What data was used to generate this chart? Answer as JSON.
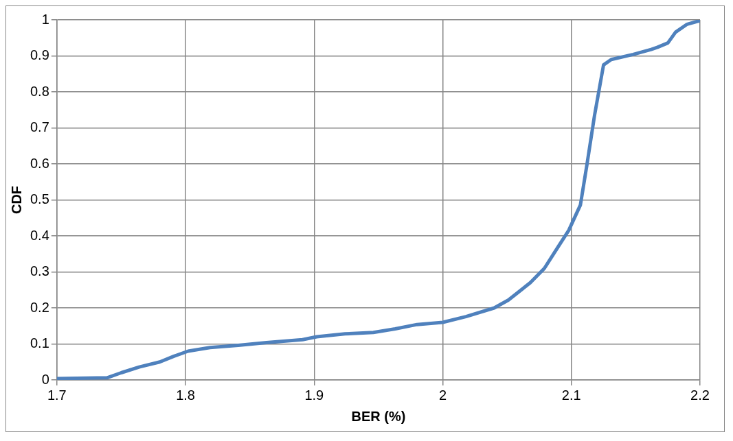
{
  "chart_data": {
    "type": "line",
    "xlabel": "BER (%)",
    "ylabel": "CDF",
    "xlim": [
      1.7,
      2.2
    ],
    "xticks": [
      1.7,
      1.8,
      1.9,
      2,
      2.1,
      2.2
    ],
    "ylim": [
      0,
      1
    ],
    "yticks": [
      0,
      0.1,
      0.2,
      0.3,
      0.4,
      0.5,
      0.6,
      0.7,
      0.8,
      0.9,
      1
    ],
    "grid": true,
    "legend": false,
    "marker": "none",
    "line_style": "solid",
    "series": [
      {
        "color": "#4f81bd",
        "x": [
          1.7,
          1.739,
          1.75,
          1.764,
          1.78,
          1.791,
          1.802,
          1.819,
          1.841,
          1.863,
          1.891,
          1.902,
          1.924,
          1.946,
          1.963,
          1.98,
          2.0,
          2.018,
          2.04,
          2.051,
          2.068,
          2.079,
          2.089,
          2.098,
          2.107,
          2.112,
          2.118,
          2.125,
          2.131,
          2.148,
          2.162,
          2.167,
          2.175,
          2.181,
          2.19,
          2.2
        ],
        "values": [
          0.004,
          0.006,
          0.02,
          0.036,
          0.05,
          0.066,
          0.08,
          0.09,
          0.096,
          0.104,
          0.112,
          0.12,
          0.128,
          0.132,
          0.142,
          0.154,
          0.16,
          0.176,
          0.2,
          0.222,
          0.27,
          0.31,
          0.366,
          0.416,
          0.486,
          0.596,
          0.735,
          0.875,
          0.89,
          0.904,
          0.918,
          0.924,
          0.936,
          0.966,
          0.988,
          0.998
        ]
      }
    ]
  }
}
